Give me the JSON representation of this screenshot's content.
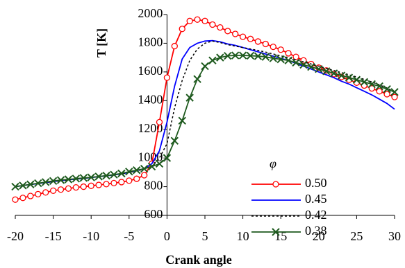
{
  "chart_data": {
    "type": "line",
    "x_label": "Crank angle",
    "y_label": "T [K]",
    "legend_title": "φ",
    "legend": "right",
    "xlim": [
      -20,
      30
    ],
    "xticks": [
      -20,
      -15,
      -10,
      -5,
      0,
      5,
      10,
      15,
      20,
      25,
      30
    ],
    "ylim": [
      600,
      2000
    ],
    "yticks": [
      600,
      800,
      1000,
      1200,
      1400,
      1600,
      1800,
      2000
    ],
    "x": [
      -20,
      -19,
      -18,
      -17,
      -16,
      -15,
      -14,
      -13,
      -12,
      -11,
      -10,
      -9,
      -8,
      -7,
      -6,
      -5,
      -4,
      -3,
      -2,
      -1,
      0,
      1,
      2,
      3,
      4,
      5,
      6,
      7,
      8,
      9,
      10,
      11,
      12,
      13,
      14,
      15,
      16,
      17,
      18,
      19,
      20,
      21,
      22,
      23,
      24,
      25,
      26,
      27,
      28,
      29,
      30
    ],
    "series": [
      {
        "name": "0.50",
        "color": "#ff0000",
        "marker": "circle",
        "linestyle": "solid",
        "values": [
          710,
          722,
          735,
          748,
          760,
          772,
          780,
          787,
          795,
          800,
          806,
          812,
          818,
          825,
          832,
          842,
          855,
          880,
          960,
          1250,
          1560,
          1780,
          1900,
          1955,
          1965,
          1955,
          1930,
          1910,
          1885,
          1865,
          1845,
          1830,
          1812,
          1795,
          1775,
          1755,
          1730,
          1705,
          1680,
          1655,
          1630,
          1610,
          1585,
          1565,
          1545,
          1525,
          1505,
          1485,
          1465,
          1445,
          1425
        ]
      },
      {
        "name": "0.45",
        "color": "#0000ff",
        "marker": "none",
        "linestyle": "solid",
        "values": [
          800,
          808,
          815,
          822,
          829,
          836,
          842,
          848,
          853,
          858,
          864,
          870,
          876,
          882,
          889,
          900,
          912,
          925,
          960,
          1050,
          1250,
          1500,
          1690,
          1770,
          1800,
          1815,
          1818,
          1810,
          1795,
          1785,
          1770,
          1755,
          1740,
          1725,
          1710,
          1695,
          1680,
          1660,
          1640,
          1620,
          1600,
          1580,
          1560,
          1535,
          1515,
          1490,
          1465,
          1440,
          1410,
          1380,
          1340
        ]
      },
      {
        "name": "0.42",
        "color": "#000000",
        "marker": "none",
        "linestyle": "dashed",
        "values": [
          800,
          808,
          815,
          822,
          829,
          836,
          842,
          848,
          853,
          858,
          864,
          870,
          876,
          882,
          889,
          900,
          910,
          922,
          945,
          1000,
          1100,
          1350,
          1540,
          1680,
          1760,
          1800,
          1815,
          1805,
          1790,
          1780,
          1770,
          1760,
          1750,
          1738,
          1725,
          1712,
          1700,
          1685,
          1670,
          1655,
          1640,
          1625,
          1610,
          1595,
          1580,
          1565,
          1548,
          1530,
          1510,
          1488,
          1460
        ]
      },
      {
        "name": "0.38",
        "color": "#1e5a1e",
        "marker": "x",
        "linestyle": "solid",
        "values": [
          800,
          808,
          816,
          824,
          832,
          840,
          846,
          851,
          856,
          861,
          865,
          871,
          877,
          884,
          892,
          905,
          915,
          925,
          940,
          960,
          1000,
          1120,
          1260,
          1420,
          1550,
          1640,
          1680,
          1700,
          1712,
          1715,
          1715,
          1713,
          1710,
          1705,
          1695,
          1688,
          1680,
          1665,
          1650,
          1635,
          1620,
          1605,
          1590,
          1575,
          1560,
          1545,
          1530,
          1515,
          1500,
          1480,
          1460
        ]
      }
    ]
  }
}
